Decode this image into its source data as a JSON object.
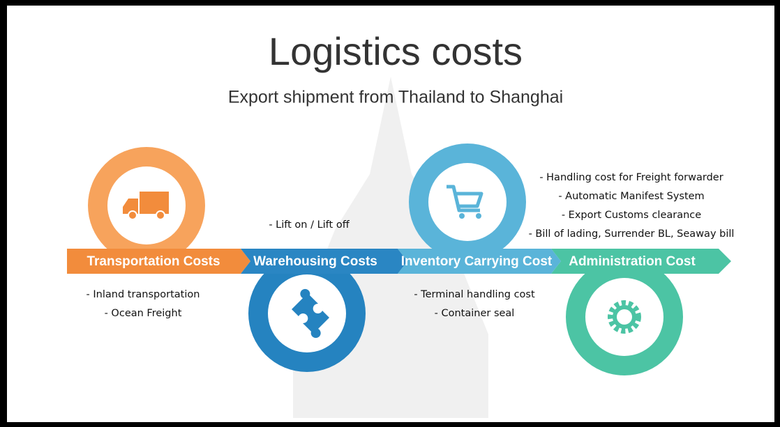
{
  "title": "Logistics costs",
  "subtitle": "Export shipment from Thailand to Shanghai",
  "stages": [
    {
      "label": "Transportation Costs",
      "items": [
        "- Inland transportation",
        "- Ocean Freight"
      ]
    },
    {
      "label": "Warehousing Costs",
      "items": [
        "- Lift on / Lift off"
      ]
    },
    {
      "label": "Inventory Carrying Cost",
      "items": [
        "- Terminal handling cost",
        "- Container seal"
      ]
    },
    {
      "label": "Administration Cost",
      "items": [
        "- Handling cost for Freight forwarder",
        "- Automatic Manifest System",
        "- Export Customs clearance",
        "- Bill of lading, Surrender BL, Seaway bill"
      ]
    }
  ]
}
